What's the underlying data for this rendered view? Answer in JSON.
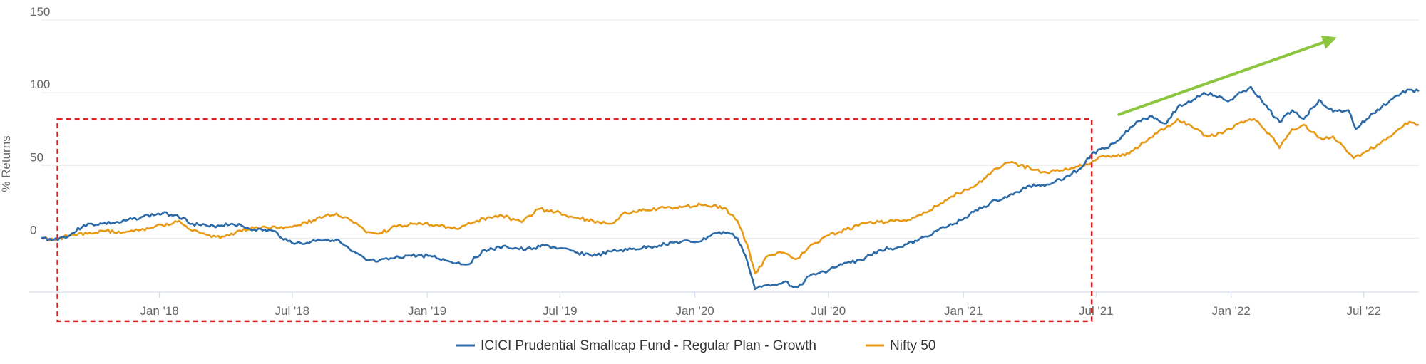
{
  "chart_data": {
    "type": "line",
    "title": "",
    "xlabel": "",
    "ylabel": "% Returns",
    "ylim": [
      -37,
      150
    ],
    "y_ticks": [
      0,
      50,
      100,
      150
    ],
    "y_tick_labels": [
      "0",
      "50",
      "100",
      "150"
    ],
    "x_range": [
      "2017-07-24",
      "2022-09-14"
    ],
    "x_ticks": [
      "2018-01-01",
      "2018-07-01",
      "2019-01-01",
      "2019-07-01",
      "2020-01-01",
      "2020-07-01",
      "2021-01-01",
      "2021-07-01",
      "2022-01-01",
      "2022-07-01"
    ],
    "x_tick_labels": [
      "Jan '18",
      "Jul '18",
      "Jan '19",
      "Jul '19",
      "Jan '20",
      "Jul '20",
      "Jan '21",
      "Jul '21",
      "Jan '22",
      "Jul '22"
    ],
    "grid": "horizontal",
    "legend_position": "bottom-center",
    "series": [
      {
        "name": "ICICI Prudential Smallcap Fund - Regular Plan - Growth",
        "color": "#2c6aa8",
        "points": [
          [
            "2017-07-24",
            0
          ],
          [
            "2017-08-10",
            -1
          ],
          [
            "2017-09-01",
            2
          ],
          [
            "2017-09-20",
            9
          ],
          [
            "2017-10-15",
            10
          ],
          [
            "2017-11-10",
            11
          ],
          [
            "2017-12-10",
            15
          ],
          [
            "2018-01-05",
            17
          ],
          [
            "2018-01-25",
            16
          ],
          [
            "2018-02-15",
            10
          ],
          [
            "2018-03-10",
            8
          ],
          [
            "2018-04-10",
            10
          ],
          [
            "2018-05-10",
            6
          ],
          [
            "2018-06-05",
            5
          ],
          [
            "2018-06-25",
            -2
          ],
          [
            "2018-07-15",
            -4
          ],
          [
            "2018-08-05",
            -1
          ],
          [
            "2018-08-30",
            -1
          ],
          [
            "2018-09-20",
            -9
          ],
          [
            "2018-10-10",
            -15
          ],
          [
            "2018-10-26",
            -16
          ],
          [
            "2018-11-15",
            -14
          ],
          [
            "2018-12-05",
            -12
          ],
          [
            "2019-01-05",
            -12
          ],
          [
            "2019-02-01",
            -16
          ],
          [
            "2019-02-25",
            -18
          ],
          [
            "2019-03-20",
            -8
          ],
          [
            "2019-04-20",
            -6
          ],
          [
            "2019-05-15",
            -8
          ],
          [
            "2019-06-10",
            -5
          ],
          [
            "2019-06-30",
            -7
          ],
          [
            "2019-07-25",
            -10
          ],
          [
            "2019-08-20",
            -12
          ],
          [
            "2019-09-10",
            -9
          ],
          [
            "2019-10-01",
            -8
          ],
          [
            "2019-11-01",
            -6
          ],
          [
            "2019-12-01",
            -3
          ],
          [
            "2020-01-10",
            -2
          ],
          [
            "2020-01-25",
            3
          ],
          [
            "2020-02-15",
            4
          ],
          [
            "2020-02-28",
            0
          ],
          [
            "2020-03-10",
            -12
          ],
          [
            "2020-03-23",
            -35
          ],
          [
            "2020-04-10",
            -32
          ],
          [
            "2020-05-01",
            -30
          ],
          [
            "2020-05-20",
            -34
          ],
          [
            "2020-06-05",
            -26
          ],
          [
            "2020-06-25",
            -23
          ],
          [
            "2020-07-20",
            -18
          ],
          [
            "2020-08-15",
            -15
          ],
          [
            "2020-09-10",
            -8
          ],
          [
            "2020-10-05",
            -6
          ],
          [
            "2020-10-30",
            -2
          ],
          [
            "2020-11-25",
            5
          ],
          [
            "2020-12-20",
            10
          ],
          [
            "2021-01-15",
            18
          ],
          [
            "2021-02-15",
            26
          ],
          [
            "2021-03-10",
            30
          ],
          [
            "2021-04-01",
            36
          ],
          [
            "2021-04-25",
            37
          ],
          [
            "2021-05-20",
            42
          ],
          [
            "2021-06-10",
            48
          ],
          [
            "2021-06-25",
            58
          ],
          [
            "2021-07-15",
            62
          ],
          [
            "2021-08-05",
            70
          ],
          [
            "2021-08-25",
            80
          ],
          [
            "2021-09-15",
            84
          ],
          [
            "2021-10-05",
            79
          ],
          [
            "2021-10-20",
            90
          ],
          [
            "2021-11-10",
            95
          ],
          [
            "2021-11-25",
            100
          ],
          [
            "2021-12-10",
            98
          ],
          [
            "2021-12-28",
            94
          ],
          [
            "2022-01-15",
            100
          ],
          [
            "2022-01-28",
            104
          ],
          [
            "2022-02-15",
            92
          ],
          [
            "2022-03-08",
            80
          ],
          [
            "2022-03-25",
            88
          ],
          [
            "2022-04-10",
            82
          ],
          [
            "2022-05-01",
            95
          ],
          [
            "2022-05-20",
            87
          ],
          [
            "2022-06-10",
            88
          ],
          [
            "2022-06-20",
            75
          ],
          [
            "2022-07-05",
            82
          ],
          [
            "2022-07-25",
            90
          ],
          [
            "2022-08-15",
            98
          ],
          [
            "2022-09-01",
            102
          ],
          [
            "2022-09-14",
            101
          ]
        ]
      },
      {
        "name": "Nifty 50",
        "color": "#e89a17",
        "points": [
          [
            "2017-07-24",
            0
          ],
          [
            "2017-08-10",
            -1
          ],
          [
            "2017-09-01",
            2
          ],
          [
            "2017-09-25",
            3
          ],
          [
            "2017-10-20",
            5
          ],
          [
            "2017-11-15",
            4
          ],
          [
            "2017-12-15",
            7
          ],
          [
            "2018-01-05",
            9
          ],
          [
            "2018-01-28",
            12
          ],
          [
            "2018-02-15",
            5
          ],
          [
            "2018-03-10",
            2
          ],
          [
            "2018-03-25",
            0
          ],
          [
            "2018-04-15",
            4
          ],
          [
            "2018-05-10",
            7
          ],
          [
            "2018-06-10",
            7
          ],
          [
            "2018-07-10",
            9
          ],
          [
            "2018-08-10",
            14
          ],
          [
            "2018-08-30",
            17
          ],
          [
            "2018-09-20",
            12
          ],
          [
            "2018-10-10",
            4
          ],
          [
            "2018-10-26",
            3
          ],
          [
            "2018-11-20",
            8
          ],
          [
            "2018-12-15",
            10
          ],
          [
            "2019-01-15",
            9
          ],
          [
            "2019-02-15",
            7
          ],
          [
            "2019-03-10",
            12
          ],
          [
            "2019-04-10",
            16
          ],
          [
            "2019-05-10",
            11
          ],
          [
            "2019-06-01",
            20
          ],
          [
            "2019-06-25",
            18
          ],
          [
            "2019-07-15",
            15
          ],
          [
            "2019-08-15",
            12
          ],
          [
            "2019-09-10",
            10
          ],
          [
            "2019-09-25",
            17
          ],
          [
            "2019-10-20",
            19
          ],
          [
            "2019-11-20",
            21
          ],
          [
            "2019-12-20",
            22
          ],
          [
            "2020-01-15",
            23
          ],
          [
            "2020-02-10",
            21
          ],
          [
            "2020-02-28",
            12
          ],
          [
            "2020-03-12",
            -4
          ],
          [
            "2020-03-23",
            -24
          ],
          [
            "2020-04-10",
            -12
          ],
          [
            "2020-05-01",
            -10
          ],
          [
            "2020-05-20",
            -14
          ],
          [
            "2020-06-10",
            -4
          ],
          [
            "2020-07-01",
            2
          ],
          [
            "2020-07-25",
            6
          ],
          [
            "2020-08-25",
            11
          ],
          [
            "2020-09-20",
            11
          ],
          [
            "2020-10-15",
            12
          ],
          [
            "2020-11-05",
            16
          ],
          [
            "2020-12-01",
            24
          ],
          [
            "2020-12-25",
            31
          ],
          [
            "2021-01-20",
            37
          ],
          [
            "2021-02-15",
            48
          ],
          [
            "2021-03-05",
            52
          ],
          [
            "2021-04-10",
            47
          ],
          [
            "2021-04-25",
            45
          ],
          [
            "2021-05-20",
            48
          ],
          [
            "2021-06-15",
            50
          ],
          [
            "2021-07-05",
            56
          ],
          [
            "2021-07-25",
            57
          ],
          [
            "2021-08-15",
            58
          ],
          [
            "2021-09-10",
            68
          ],
          [
            "2021-09-25",
            74
          ],
          [
            "2021-10-10",
            77
          ],
          [
            "2021-10-20",
            82
          ],
          [
            "2021-11-10",
            76
          ],
          [
            "2021-11-30",
            70
          ],
          [
            "2021-12-20",
            72
          ],
          [
            "2022-01-15",
            80
          ],
          [
            "2022-02-01",
            82
          ],
          [
            "2022-02-25",
            70
          ],
          [
            "2022-03-08",
            62
          ],
          [
            "2022-03-25",
            75
          ],
          [
            "2022-04-10",
            78
          ],
          [
            "2022-05-05",
            68
          ],
          [
            "2022-05-20",
            70
          ],
          [
            "2022-06-05",
            62
          ],
          [
            "2022-06-17",
            55
          ],
          [
            "2022-07-05",
            60
          ],
          [
            "2022-07-25",
            66
          ],
          [
            "2022-08-15",
            74
          ],
          [
            "2022-09-01",
            80
          ],
          [
            "2022-09-14",
            78
          ]
        ]
      }
    ],
    "annotations": [
      {
        "type": "dashed-rectangle",
        "color": "#e02020",
        "from": "2017-08-15",
        "to": "2021-06-25",
        "y_top": 82,
        "y_bottom": -57
      },
      {
        "type": "arrow",
        "color": "#8cc63f",
        "from": [
          "2021-08-01",
          85
        ],
        "to": [
          "2022-05-25",
          138
        ]
      }
    ]
  }
}
